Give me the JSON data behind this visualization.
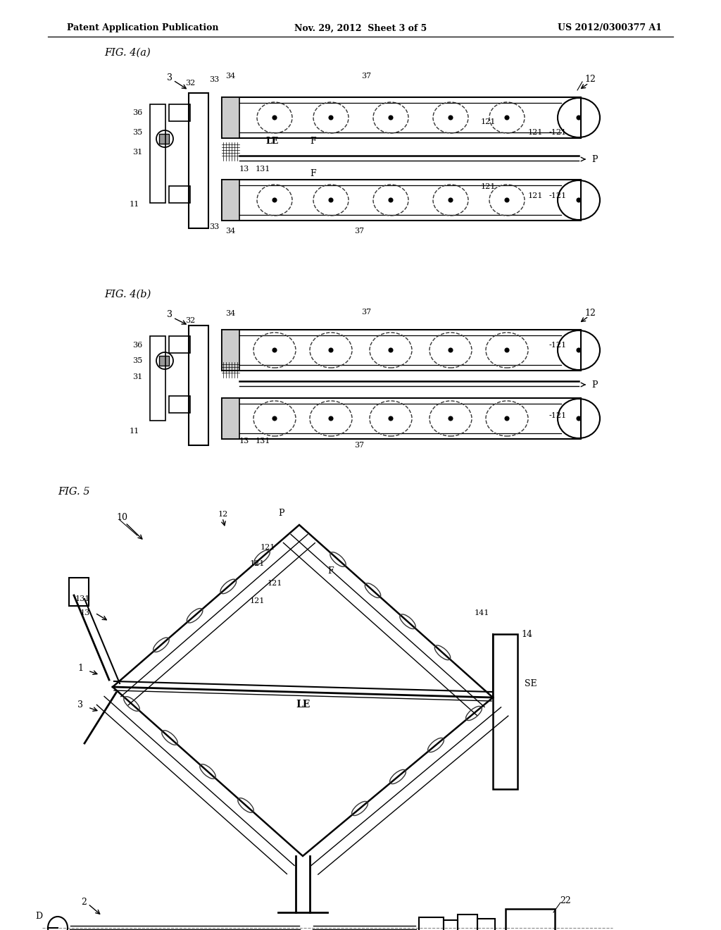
{
  "bg_color": "#ffffff",
  "header_left": "Patent Application Publication",
  "header_center": "Nov. 29, 2012  Sheet 3 of 5",
  "header_right": "US 2012/0300377 A1",
  "figsize": [
    10.24,
    13.2
  ],
  "dpi": 100
}
